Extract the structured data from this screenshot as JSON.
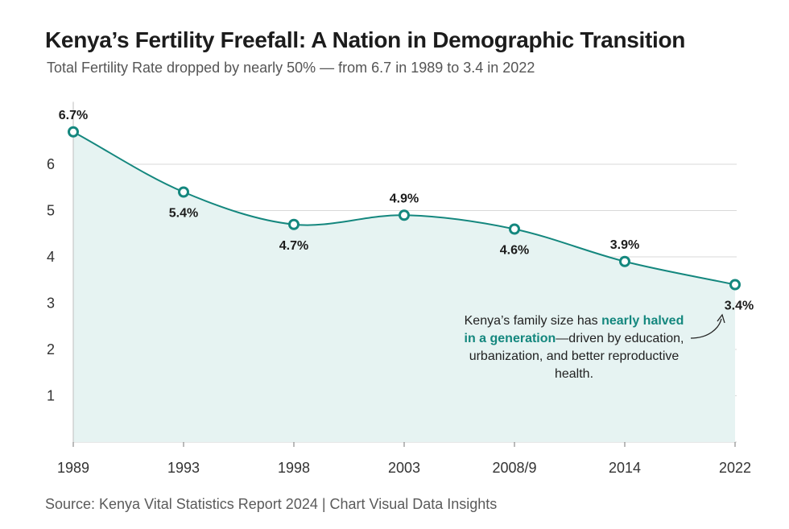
{
  "title": "Kenya’s Fertility Freefall: A Nation in Demographic Transition",
  "subtitle": "Total Fertility Rate dropped by nearly 50% — from 6.7 in 1989 to 3.4 in 2022",
  "source": "Source: Kenya Vital Statistics Report 2024 | Chart Visual Data Insights",
  "callout": {
    "text_before": "Kenya’s family size has ",
    "highlight": "nearly halved in a generation",
    "text_after": "—driven by education, urbanization, and better reproductive health."
  },
  "colors": {
    "line": "#14877e",
    "area": "#e6f3f2",
    "grid": "#d9d9d9",
    "highlight": "#14877e"
  },
  "chart_data": {
    "type": "area",
    "title": "Kenya’s Fertility Freefall: A Nation in Demographic Transition",
    "subtitle": "Total Fertility Rate dropped by nearly 50% — from 6.7 in 1989 to 3.4 in 2022",
    "categories": [
      "1989",
      "1993",
      "1998",
      "2003",
      "2008/9",
      "2014",
      "2022"
    ],
    "values": [
      6.7,
      5.4,
      4.7,
      4.9,
      4.6,
      3.9,
      3.4
    ],
    "data_labels": [
      "6.7%",
      "5.4%",
      "4.7%",
      "4.9%",
      "4.6%",
      "3.9%",
      "3.4%"
    ],
    "label_positions": [
      "above",
      "below",
      "below",
      "above",
      "below",
      "above",
      "below"
    ],
    "y_ticks": [
      1,
      2,
      3,
      4,
      5,
      6
    ],
    "ylim": [
      0,
      7
    ],
    "grid": true,
    "xlabel": "",
    "ylabel": ""
  }
}
